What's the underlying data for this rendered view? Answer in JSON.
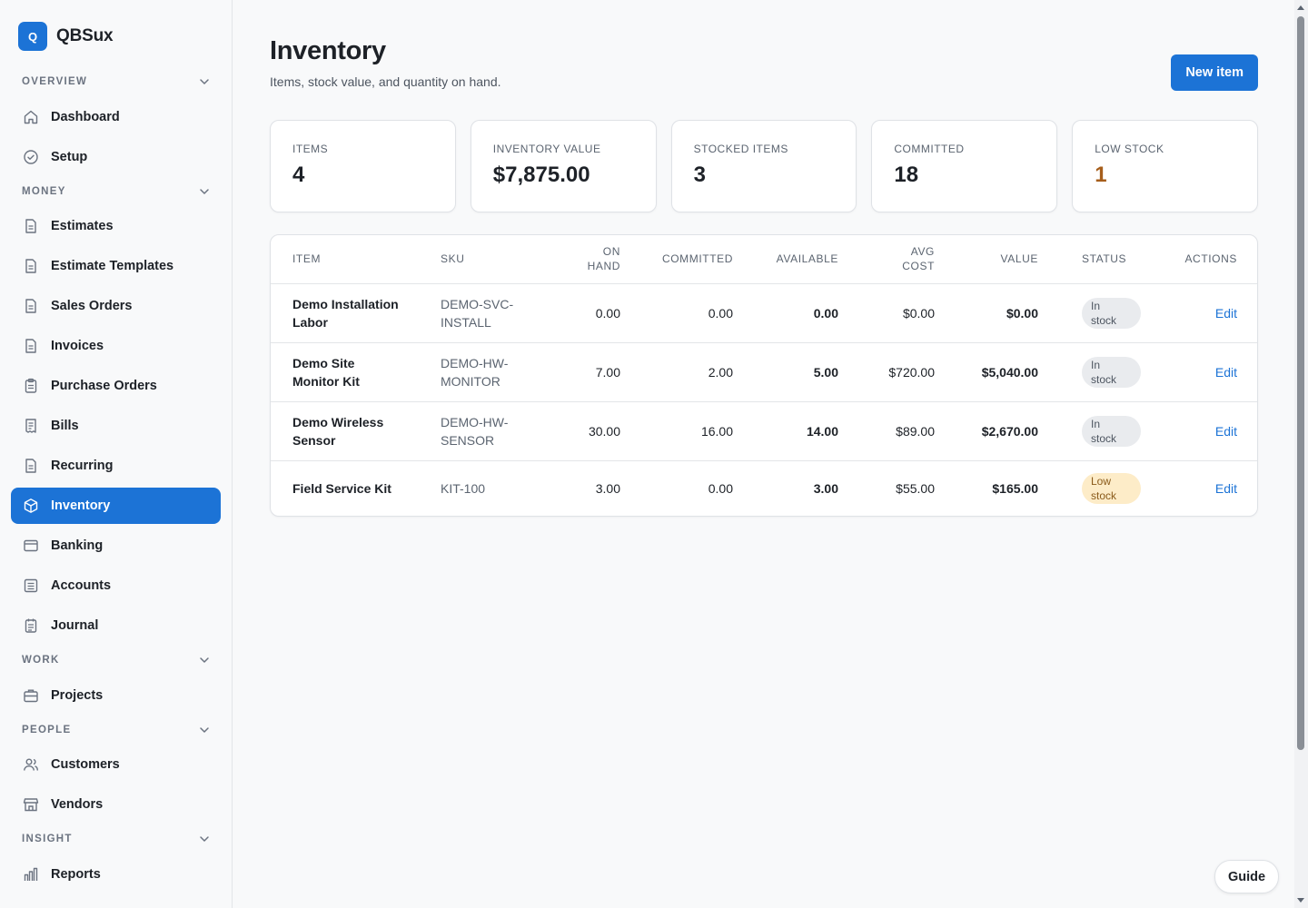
{
  "brand": {
    "logo_letter": "Q",
    "name": "QBSux"
  },
  "sidebar": {
    "sections": [
      {
        "label": "OVERVIEW"
      },
      {
        "label": "MONEY"
      },
      {
        "label": "WORK"
      },
      {
        "label": "PEOPLE"
      },
      {
        "label": "INSIGHT"
      }
    ],
    "items": [
      {
        "label": "Dashboard",
        "icon": "home-icon"
      },
      {
        "label": "Setup",
        "icon": "check-circle-icon"
      },
      {
        "label": "Estimates",
        "icon": "document-icon"
      },
      {
        "label": "Estimate Templates",
        "icon": "document-icon"
      },
      {
        "label": "Sales Orders",
        "icon": "document-icon"
      },
      {
        "label": "Invoices",
        "icon": "document-icon"
      },
      {
        "label": "Purchase Orders",
        "icon": "clipboard-icon"
      },
      {
        "label": "Bills",
        "icon": "receipt-icon"
      },
      {
        "label": "Recurring",
        "icon": "document-icon"
      },
      {
        "label": "Inventory",
        "icon": "box-icon",
        "active": true
      },
      {
        "label": "Banking",
        "icon": "bank-card-icon"
      },
      {
        "label": "Accounts",
        "icon": "ledger-icon"
      },
      {
        "label": "Journal",
        "icon": "journal-icon"
      },
      {
        "label": "Projects",
        "icon": "briefcase-icon"
      },
      {
        "label": "Customers",
        "icon": "users-icon"
      },
      {
        "label": "Vendors",
        "icon": "store-icon"
      },
      {
        "label": "Reports",
        "icon": "bar-chart-icon"
      }
    ]
  },
  "header": {
    "title": "Inventory",
    "subtitle": "Items, stock value, and quantity on hand.",
    "new_button": "New item"
  },
  "stats": [
    {
      "label": "ITEMS",
      "value": "4"
    },
    {
      "label": "INVENTORY VALUE",
      "value": "$7,875.00"
    },
    {
      "label": "STOCKED ITEMS",
      "value": "3"
    },
    {
      "label": "COMMITTED",
      "value": "18"
    },
    {
      "label": "LOW STOCK",
      "value": "1"
    }
  ],
  "table": {
    "columns": {
      "item": "ITEM",
      "sku": "SKU",
      "on_hand_1": "ON",
      "on_hand_2": "HAND",
      "committed": "COMMITTED",
      "available": "AVAILABLE",
      "avg_cost_1": "AVG",
      "avg_cost_2": "COST",
      "value": "VALUE",
      "status": "STATUS",
      "actions": "ACTIONS"
    },
    "rows": [
      {
        "item_1": "Demo Installation",
        "item_2": "Labor",
        "sku_1": "DEMO-SVC-",
        "sku_2": "INSTALL",
        "on_hand": "0.00",
        "committed": "0.00",
        "available": "0.00",
        "avg_cost": "$0.00",
        "value": "$0.00",
        "status_1": "In",
        "status_2": "stock",
        "action": "Edit"
      },
      {
        "item_1": "Demo Site",
        "item_2": "Monitor Kit",
        "sku_1": "DEMO-HW-",
        "sku_2": "MONITOR",
        "on_hand": "7.00",
        "committed": "2.00",
        "available": "5.00",
        "avg_cost": "$720.00",
        "value": "$5,040.00",
        "status_1": "In",
        "status_2": "stock",
        "action": "Edit"
      },
      {
        "item_1": "Demo Wireless",
        "item_2": "Sensor",
        "sku_1": "DEMO-HW-",
        "sku_2": "SENSOR",
        "on_hand": "30.00",
        "committed": "16.00",
        "available": "14.00",
        "avg_cost": "$89.00",
        "value": "$2,670.00",
        "status_1": "In",
        "status_2": "stock",
        "action": "Edit"
      },
      {
        "item_1": "Field Service Kit",
        "item_2": "",
        "sku_1": "KIT-100",
        "sku_2": "",
        "on_hand": "3.00",
        "committed": "0.00",
        "available": "3.00",
        "avg_cost": "$55.00",
        "value": "$165.00",
        "status_1": "Low",
        "status_2": "stock",
        "action": "Edit"
      }
    ]
  },
  "guide_button": "Guide",
  "colors": {
    "accent": "#1c73d6",
    "warning": "#a65e1b",
    "low_badge_bg": "#fdecc8"
  }
}
